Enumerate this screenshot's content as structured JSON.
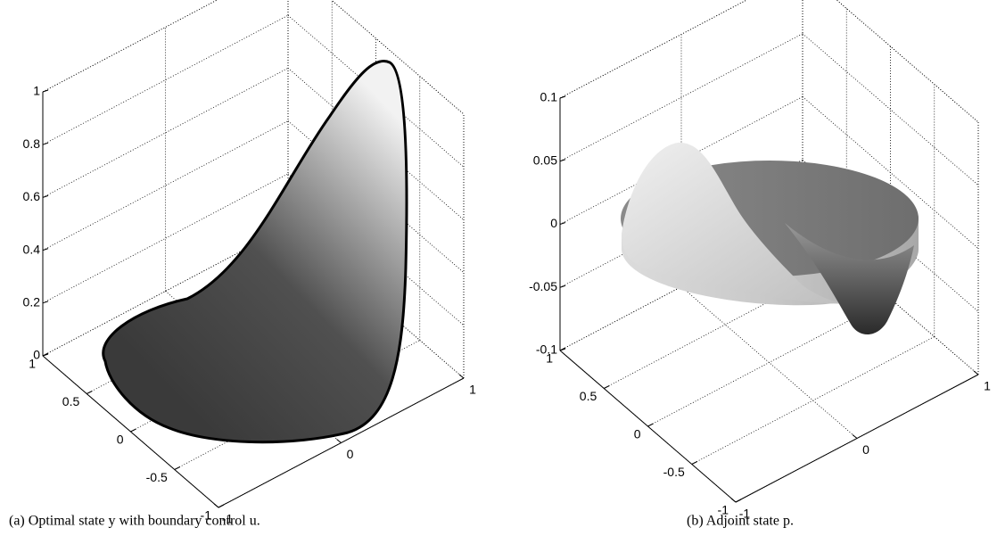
{
  "chart_data": [
    {
      "type": "surface3d",
      "caption": "(a) Optimal state y with boundary control u.",
      "xlim": [
        -1,
        1
      ],
      "xticks": [
        -1,
        0,
        1
      ],
      "ylim": [
        -1,
        1
      ],
      "yticks": [
        -1,
        -0.5,
        0,
        0.5,
        1
      ],
      "zlim": [
        0,
        1
      ],
      "zticks": [
        0,
        0.2,
        0.4,
        0.6,
        0.8,
        1
      ],
      "grid": true
    },
    {
      "type": "surface3d",
      "caption": "(b) Adjoint state p.",
      "xlim": [
        -1,
        1
      ],
      "xticks": [
        -1,
        0,
        1
      ],
      "ylim": [
        -1,
        1
      ],
      "yticks": [
        -1,
        -0.5,
        0,
        0.5,
        1
      ],
      "zlim": [
        -0.1,
        0.1
      ],
      "zticks": [
        -0.1,
        -0.05,
        0,
        0.05,
        0.1
      ],
      "grid": true
    }
  ]
}
